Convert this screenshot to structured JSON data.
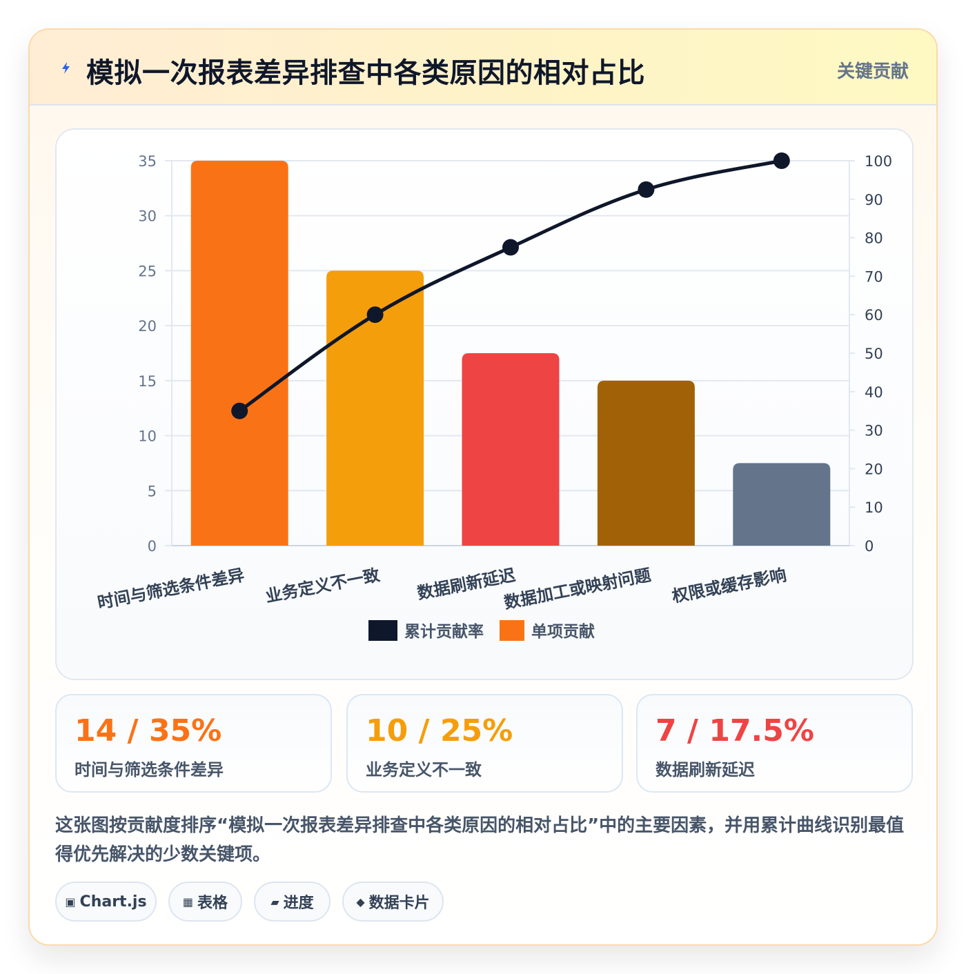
{
  "header": {
    "icon": "lightning-icon",
    "title": "模拟一次报表差异排查中各类原因的相对占比",
    "badge": "关键贡献"
  },
  "chart_data": {
    "type": "bar",
    "categories": [
      "时间与筛选条件差异",
      "业务定义不一致",
      "数据刷新延迟",
      "数据加工或映射问题",
      "权限或缓存影响"
    ],
    "series": [
      {
        "name": "单项贡献",
        "type": "bar",
        "axis": "left",
        "values": [
          35,
          25,
          17.5,
          15,
          7.5
        ],
        "colors": [
          "#f97316",
          "#f59e0b",
          "#ef4444",
          "#a16207",
          "#64748b"
        ]
      },
      {
        "name": "累计贡献率",
        "type": "line",
        "axis": "right",
        "values": [
          35,
          60,
          77.5,
          92.5,
          100
        ],
        "color": "#0f172a"
      }
    ],
    "y_left": {
      "range": [
        0,
        35
      ],
      "ticks": [
        "0",
        "5",
        "10",
        "15",
        "20",
        "25",
        "30",
        "35"
      ]
    },
    "y_right": {
      "range": [
        0,
        100
      ],
      "ticks": [
        "0",
        "10",
        "20",
        "30",
        "40",
        "50",
        "60",
        "70",
        "80",
        "90",
        "100"
      ]
    },
    "legend": [
      {
        "label": "累计贡献率",
        "color": "#0f172a"
      },
      {
        "label": "单项贡献",
        "color": "#f97316"
      }
    ],
    "legend_position": "bottom",
    "grid": true
  },
  "stats": [
    {
      "value": "14 / 35%",
      "label": "时间与筛选条件差异",
      "color": "#f97316"
    },
    {
      "value": "10 / 25%",
      "label": "业务定义不一致",
      "color": "#f59e0b"
    },
    {
      "value": "7 / 17.5%",
      "label": "数据刷新延迟",
      "color": "#ef4444"
    }
  ],
  "description": "这张图按贡献度排序“模拟一次报表差异排查中各类原因的相对占比”中的主要因素，并用累计曲线识别最值得优先解决的少数关键项。",
  "chips": [
    {
      "icon": "chart-square-icon",
      "glyph": "▣",
      "label": "Chart.js"
    },
    {
      "icon": "table-grid-icon",
      "glyph": "▦",
      "label": "表格"
    },
    {
      "icon": "progress-bar-icon",
      "glyph": "▰",
      "label": "进度"
    },
    {
      "icon": "diamond-icon",
      "glyph": "◆",
      "label": "数据卡片"
    }
  ]
}
